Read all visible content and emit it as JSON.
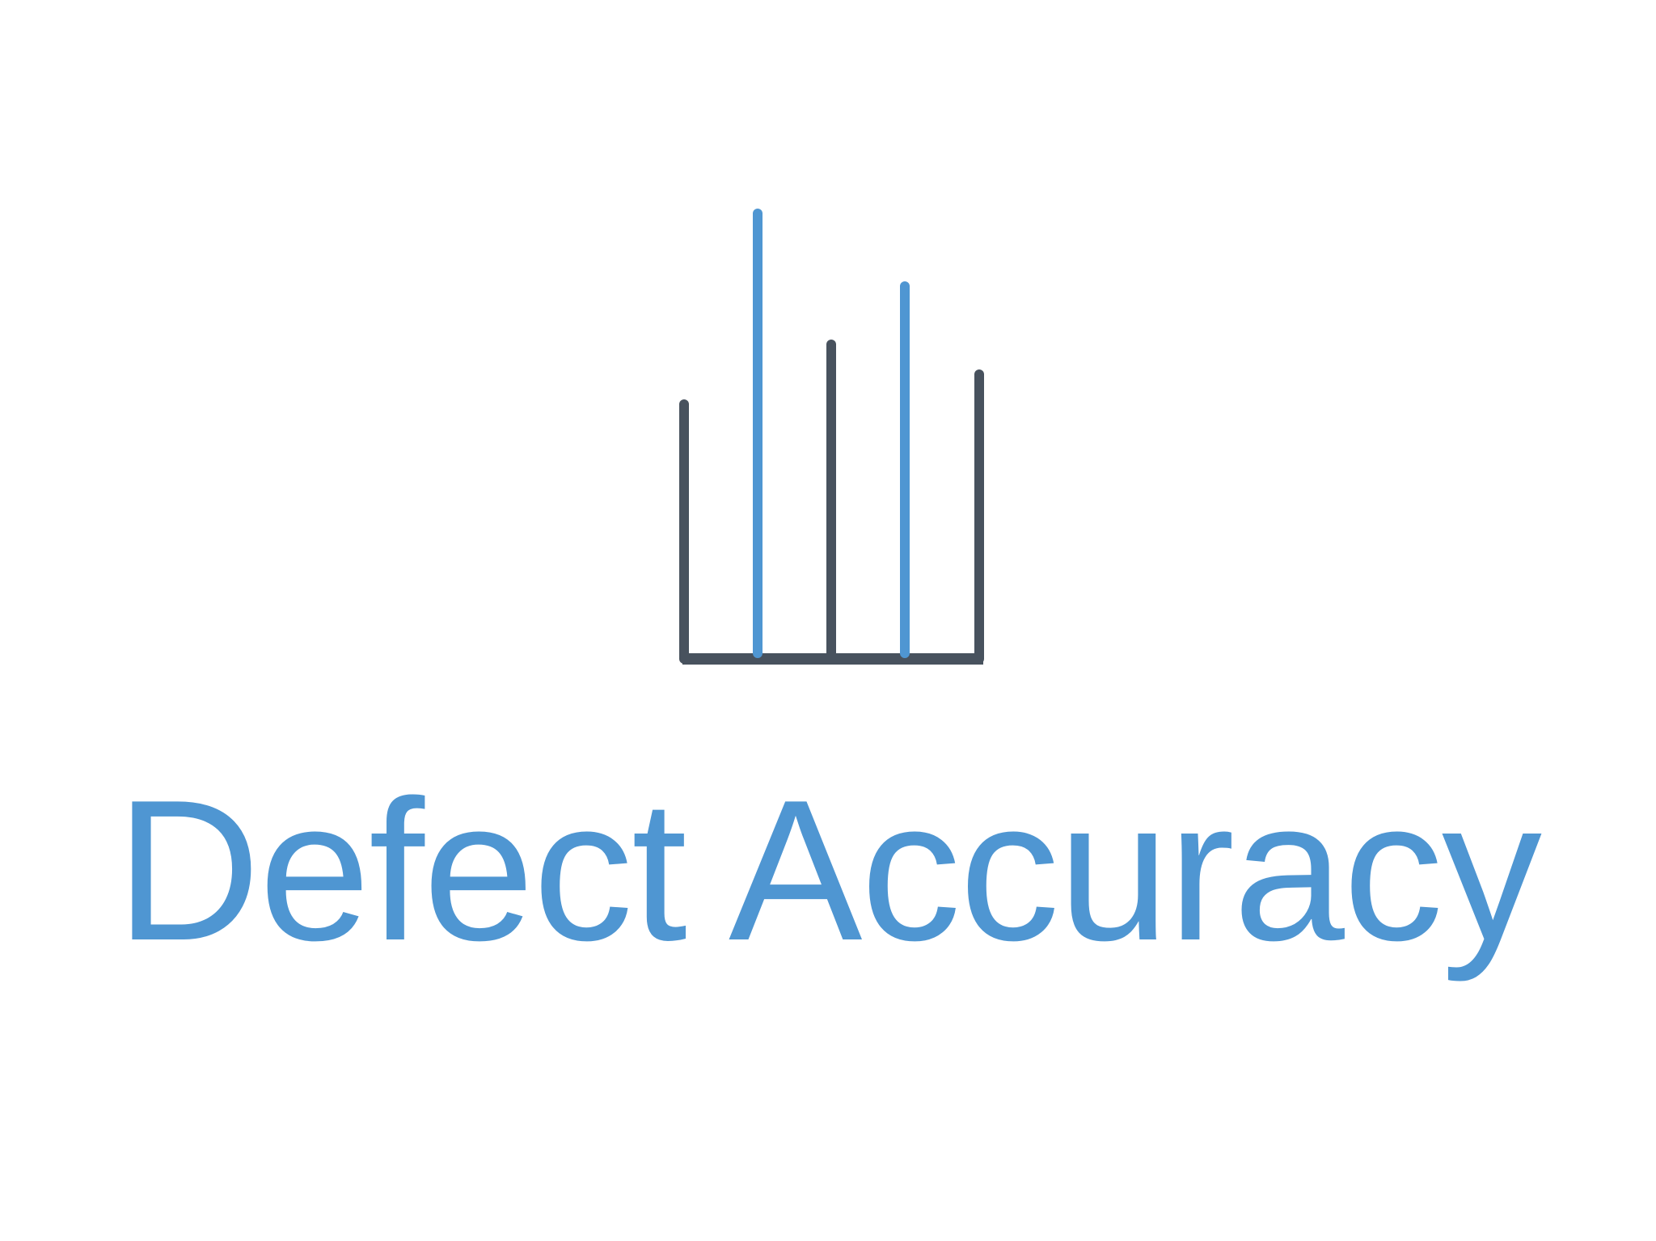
{
  "logo": {
    "title": "Defect Accuracy",
    "colors": {
      "accent": "#4f96d2",
      "dark": "#48525e"
    },
    "icon": "bar-chart-icon"
  }
}
